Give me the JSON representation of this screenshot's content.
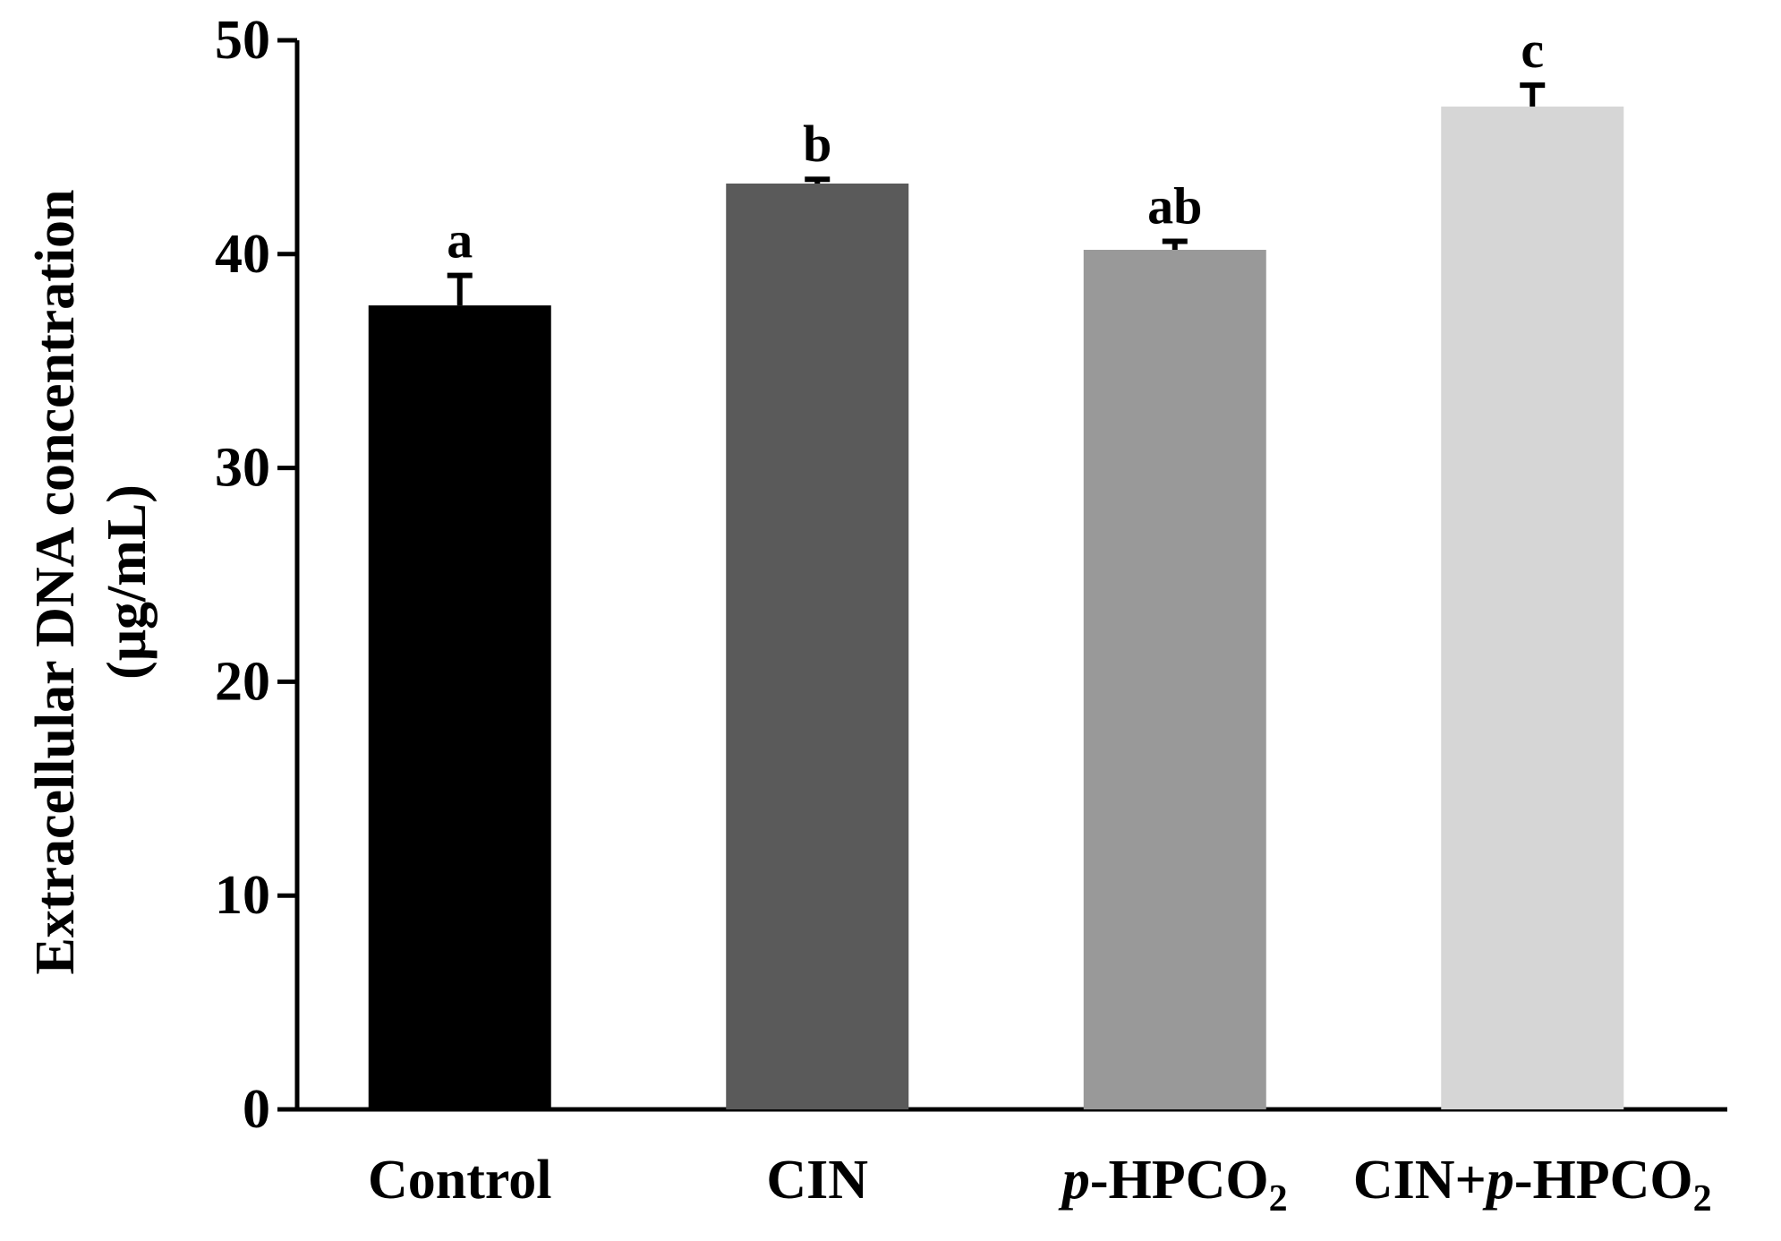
{
  "chart_data": {
    "type": "bar",
    "title": "",
    "xlabel": "",
    "ylabel_line1": "Extracellular DNA concentration",
    "ylabel_line2": "(μg/mL)",
    "ylim": [
      0,
      50
    ],
    "yticks": [
      0,
      10,
      20,
      30,
      40,
      50
    ],
    "categories": [
      {
        "id": "control",
        "parts": [
          {
            "text": "Control",
            "italic": false,
            "sub": false
          }
        ]
      },
      {
        "id": "cin",
        "parts": [
          {
            "text": "CIN",
            "italic": false,
            "sub": false
          }
        ]
      },
      {
        "id": "p-hpco2",
        "parts": [
          {
            "text": "p",
            "italic": true,
            "sub": false
          },
          {
            "text": "-HPCO",
            "italic": false,
            "sub": false
          },
          {
            "text": "2",
            "italic": false,
            "sub": true
          }
        ]
      },
      {
        "id": "cin-p-hpco2",
        "parts": [
          {
            "text": "CIN+",
            "italic": false,
            "sub": false
          },
          {
            "text": "p",
            "italic": true,
            "sub": false
          },
          {
            "text": "-HPCO",
            "italic": false,
            "sub": false
          },
          {
            "text": "2",
            "italic": false,
            "sub": true
          }
        ]
      }
    ],
    "values": [
      37.6,
      43.3,
      40.2,
      46.9
    ],
    "errors": [
      1.4,
      0.2,
      0.4,
      1.0
    ],
    "significance": [
      "a",
      "b",
      "ab",
      "c"
    ],
    "colors": [
      "#000000",
      "#5a5a5a",
      "#999999",
      "#d6d6d6"
    ],
    "grid": false
  }
}
